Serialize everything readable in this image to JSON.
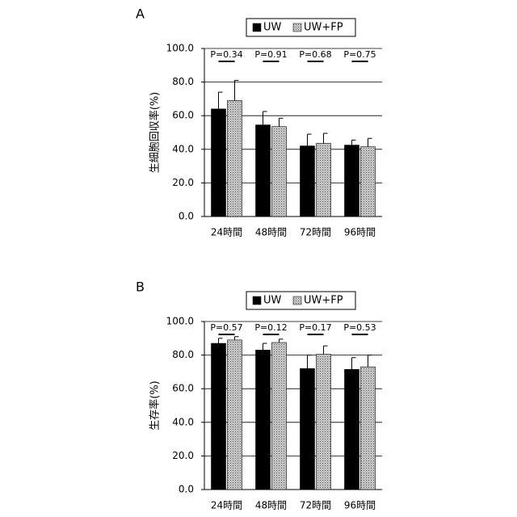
{
  "chart_data": [
    {
      "type": "bar",
      "label": "A",
      "ylabel": "生細胞回収率(%)",
      "categories": [
        "24時間",
        "48時間",
        "72時間",
        "96時間"
      ],
      "series": [
        {
          "name": "UW",
          "color": "#000000",
          "values": [
            64,
            54.5,
            42,
            42.5
          ],
          "errors": [
            10,
            8,
            7,
            3
          ]
        },
        {
          "name": "UW+FP",
          "color": "#cccccc",
          "values": [
            69,
            53.5,
            43.5,
            41.5
          ],
          "errors": [
            12,
            5,
            6,
            5
          ]
        }
      ],
      "annotations": [
        "P=0.34",
        "P=0.91",
        "P=0.68",
        "P=0.75"
      ],
      "ylim": [
        0,
        100
      ],
      "yticks": [
        {
          "value": 0,
          "label": "0.0"
        },
        {
          "value": 20,
          "label": "20.0"
        },
        {
          "value": 40,
          "label": "40.0"
        },
        {
          "value": 60,
          "label": "60.0"
        },
        {
          "value": 80,
          "label": "80.0"
        },
        {
          "value": 100,
          "label": "100.0"
        }
      ],
      "grid": true,
      "legend": "top"
    },
    {
      "type": "bar",
      "label": "B",
      "ylabel": "生存率(%)",
      "categories": [
        "24時間",
        "48時間",
        "72時間",
        "96時間"
      ],
      "series": [
        {
          "name": "UW",
          "color": "#000000",
          "values": [
            87,
            83,
            72,
            71.5
          ],
          "errors": [
            3,
            4,
            8,
            7
          ]
        },
        {
          "name": "UW+FP",
          "color": "#cccccc",
          "values": [
            89,
            87.5,
            80.5,
            73
          ],
          "errors": [
            2,
            2,
            5,
            7
          ]
        }
      ],
      "annotations": [
        "P=0.57",
        "P=0.12",
        "P=0.17",
        "P=0.53"
      ],
      "ylim": [
        0,
        100
      ],
      "yticks": [
        {
          "value": 0,
          "label": "0.0"
        },
        {
          "value": 20,
          "label": "20.0"
        },
        {
          "value": 40,
          "label": "40.0"
        },
        {
          "value": 60,
          "label": "60.0"
        },
        {
          "value": 80,
          "label": "80.0"
        },
        {
          "value": 100,
          "label": "100.0"
        }
      ],
      "grid": true,
      "legend": "top"
    }
  ]
}
